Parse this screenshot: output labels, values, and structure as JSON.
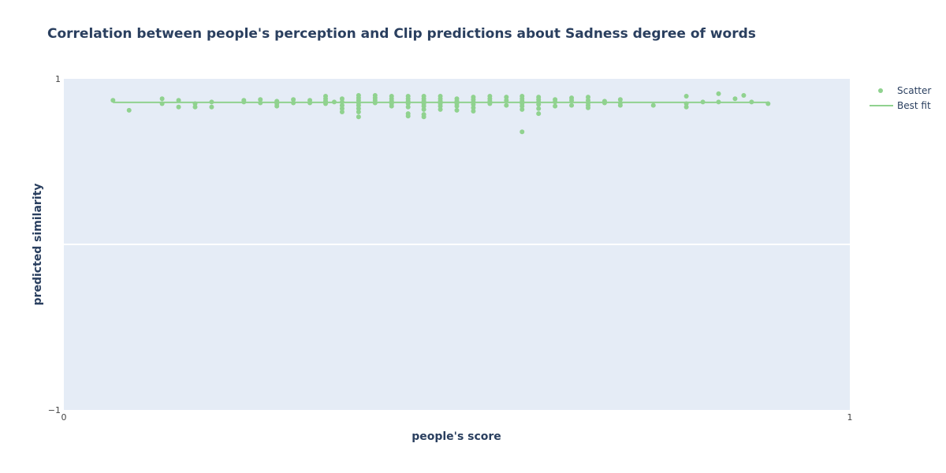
{
  "chart_data": {
    "type": "scatter",
    "title": "Correlation between people's perception and Clip predictions about Sadness degree of words",
    "xlabel": "people's score",
    "ylabel": "predicted similarity",
    "xlim": [
      0,
      1
    ],
    "ylim": [
      -1,
      1
    ],
    "x_ticks": [
      "0",
      "1"
    ],
    "y_ticks": [
      "1",
      "−1"
    ],
    "legend_position": "top-right",
    "colors": {
      "scatter": "#90d28f",
      "best_fit": "#90d28f",
      "plot_bg": "#e5ecf6",
      "grid": "#ffffff"
    },
    "series": [
      {
        "name": "Scatter",
        "mode": "markers",
        "points": [
          [
            0.0625,
            0.87
          ],
          [
            0.083,
            0.81
          ],
          [
            0.125,
            0.88
          ],
          [
            0.125,
            0.85
          ],
          [
            0.146,
            0.87
          ],
          [
            0.146,
            0.83
          ],
          [
            0.167,
            0.85
          ],
          [
            0.167,
            0.83
          ],
          [
            0.188,
            0.86
          ],
          [
            0.188,
            0.83
          ],
          [
            0.229,
            0.87
          ],
          [
            0.229,
            0.86
          ],
          [
            0.25,
            0.875
          ],
          [
            0.25,
            0.855
          ],
          [
            0.271,
            0.865
          ],
          [
            0.271,
            0.85
          ],
          [
            0.271,
            0.835
          ],
          [
            0.292,
            0.875
          ],
          [
            0.292,
            0.855
          ],
          [
            0.313,
            0.87
          ],
          [
            0.313,
            0.855
          ],
          [
            0.333,
            0.895
          ],
          [
            0.333,
            0.88
          ],
          [
            0.333,
            0.865
          ],
          [
            0.333,
            0.85
          ],
          [
            0.344,
            0.86
          ],
          [
            0.354,
            0.88
          ],
          [
            0.354,
            0.86
          ],
          [
            0.354,
            0.84
          ],
          [
            0.354,
            0.82
          ],
          [
            0.354,
            0.8
          ],
          [
            0.375,
            0.9
          ],
          [
            0.375,
            0.885
          ],
          [
            0.375,
            0.87
          ],
          [
            0.375,
            0.855
          ],
          [
            0.375,
            0.84
          ],
          [
            0.375,
            0.82
          ],
          [
            0.375,
            0.8
          ],
          [
            0.375,
            0.77
          ],
          [
            0.396,
            0.9
          ],
          [
            0.396,
            0.885
          ],
          [
            0.396,
            0.87
          ],
          [
            0.396,
            0.855
          ],
          [
            0.417,
            0.895
          ],
          [
            0.417,
            0.88
          ],
          [
            0.417,
            0.865
          ],
          [
            0.417,
            0.85
          ],
          [
            0.417,
            0.835
          ],
          [
            0.438,
            0.895
          ],
          [
            0.438,
            0.88
          ],
          [
            0.438,
            0.865
          ],
          [
            0.438,
            0.85
          ],
          [
            0.438,
            0.83
          ],
          [
            0.438,
            0.79
          ],
          [
            0.438,
            0.775
          ],
          [
            0.458,
            0.895
          ],
          [
            0.458,
            0.88
          ],
          [
            0.458,
            0.865
          ],
          [
            0.458,
            0.85
          ],
          [
            0.458,
            0.835
          ],
          [
            0.458,
            0.815
          ],
          [
            0.458,
            0.785
          ],
          [
            0.458,
            0.77
          ],
          [
            0.479,
            0.895
          ],
          [
            0.479,
            0.88
          ],
          [
            0.479,
            0.865
          ],
          [
            0.479,
            0.85
          ],
          [
            0.479,
            0.835
          ],
          [
            0.479,
            0.815
          ],
          [
            0.5,
            0.88
          ],
          [
            0.5,
            0.865
          ],
          [
            0.5,
            0.85
          ],
          [
            0.5,
            0.835
          ],
          [
            0.5,
            0.81
          ],
          [
            0.521,
            0.89
          ],
          [
            0.521,
            0.875
          ],
          [
            0.521,
            0.86
          ],
          [
            0.521,
            0.845
          ],
          [
            0.521,
            0.825
          ],
          [
            0.521,
            0.805
          ],
          [
            0.542,
            0.895
          ],
          [
            0.542,
            0.88
          ],
          [
            0.542,
            0.865
          ],
          [
            0.542,
            0.85
          ],
          [
            0.563,
            0.89
          ],
          [
            0.563,
            0.87
          ],
          [
            0.563,
            0.84
          ],
          [
            0.583,
            0.895
          ],
          [
            0.583,
            0.88
          ],
          [
            0.583,
            0.865
          ],
          [
            0.583,
            0.85
          ],
          [
            0.583,
            0.835
          ],
          [
            0.583,
            0.815
          ],
          [
            0.583,
            0.68
          ],
          [
            0.604,
            0.89
          ],
          [
            0.604,
            0.875
          ],
          [
            0.604,
            0.86
          ],
          [
            0.604,
            0.845
          ],
          [
            0.604,
            0.82
          ],
          [
            0.604,
            0.79
          ],
          [
            0.625,
            0.875
          ],
          [
            0.625,
            0.86
          ],
          [
            0.625,
            0.835
          ],
          [
            0.646,
            0.885
          ],
          [
            0.646,
            0.87
          ],
          [
            0.646,
            0.84
          ],
          [
            0.667,
            0.89
          ],
          [
            0.667,
            0.87
          ],
          [
            0.667,
            0.855
          ],
          [
            0.667,
            0.84
          ],
          [
            0.667,
            0.825
          ],
          [
            0.688,
            0.865
          ],
          [
            0.688,
            0.855
          ],
          [
            0.708,
            0.875
          ],
          [
            0.708,
            0.855
          ],
          [
            0.708,
            0.84
          ],
          [
            0.75,
            0.84
          ],
          [
            0.792,
            0.895
          ],
          [
            0.792,
            0.85
          ],
          [
            0.792,
            0.83
          ],
          [
            0.813,
            0.86
          ],
          [
            0.833,
            0.91
          ],
          [
            0.833,
            0.86
          ],
          [
            0.854,
            0.88
          ],
          [
            0.865,
            0.9
          ],
          [
            0.875,
            0.86
          ],
          [
            0.896,
            0.85
          ]
        ]
      },
      {
        "name": "Best fit",
        "mode": "lines",
        "points": [
          [
            0.0625,
            0.858
          ],
          [
            0.896,
            0.858
          ]
        ]
      }
    ]
  }
}
